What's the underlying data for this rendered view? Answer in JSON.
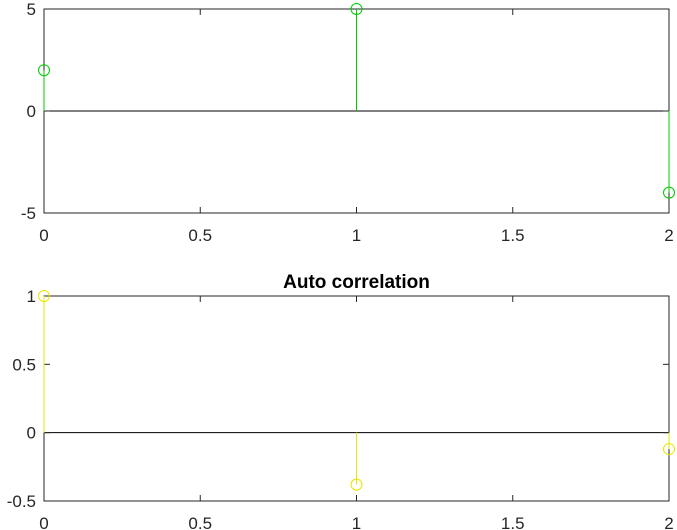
{
  "chart_data": [
    {
      "type": "stem",
      "title": "",
      "xlabel": "",
      "ylabel": "",
      "xlim": [
        0,
        2
      ],
      "ylim": [
        -5,
        5
      ],
      "xticks": [
        0,
        0.5,
        1,
        1.5,
        2
      ],
      "xtick_labels": [
        "0",
        "0.5",
        "1",
        "1.5",
        "2"
      ],
      "yticks": [
        -5,
        0,
        5
      ],
      "ytick_labels": [
        "-5",
        "0",
        "5"
      ],
      "grid": false,
      "series": [
        {
          "x": [
            0,
            1,
            2
          ],
          "values": [
            2,
            5,
            -4
          ],
          "color": "#00cc00",
          "marker": "circle"
        }
      ]
    },
    {
      "type": "stem",
      "title": "Auto correlation",
      "xlabel": "",
      "ylabel": "",
      "xlim": [
        0,
        2
      ],
      "ylim": [
        -0.5,
        1
      ],
      "xticks": [
        0,
        0.5,
        1,
        1.5,
        2
      ],
      "xtick_labels": [
        "0",
        "0.5",
        "1",
        "1.5",
        "2"
      ],
      "yticks": [
        -0.5,
        0,
        0.5,
        1
      ],
      "ytick_labels": [
        "-0.5",
        "0",
        "0.5",
        "1"
      ],
      "grid": false,
      "series": [
        {
          "x": [
            0,
            1,
            2
          ],
          "values": [
            1,
            -0.38,
            -0.12
          ],
          "color": "#e6e600",
          "marker": "circle"
        }
      ]
    }
  ]
}
